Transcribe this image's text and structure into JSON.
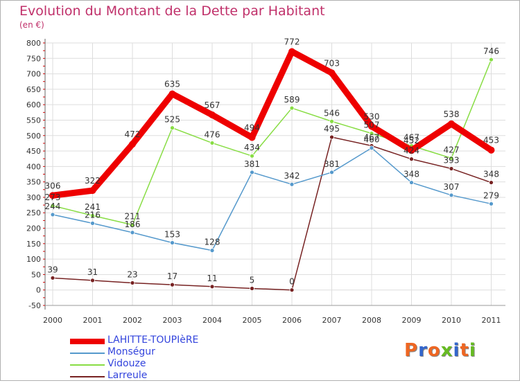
{
  "chart_data": {
    "type": "line",
    "title": "Evolution du Montant de la Dette par Habitant",
    "subtitle": "(en €)",
    "xlabel": "",
    "ylabel": "",
    "categories": [
      "2000",
      "2001",
      "2002",
      "2003",
      "2004",
      "2005",
      "2006",
      "2007",
      "2008",
      "2009",
      "2010",
      "2011"
    ],
    "ylim": [
      -50,
      800
    ],
    "yticks": [
      -50,
      0,
      50,
      100,
      150,
      200,
      250,
      300,
      350,
      400,
      450,
      500,
      550,
      600,
      650,
      700,
      750,
      800
    ],
    "grid": true,
    "legend_position": "bottom-left",
    "series": [
      {
        "name": "LAHITTE-TOUPIèRE",
        "color": "#ee0000",
        "values": [
          306,
          322,
          472,
          635,
          567,
          494,
          772,
          703,
          530,
          452,
          538,
          453
        ]
      },
      {
        "name": "Monségur",
        "color": "#5599cc",
        "values": [
          244,
          216,
          186,
          153,
          128,
          381,
          342,
          381,
          460,
          348,
          307,
          279
        ]
      },
      {
        "name": "Vidouze",
        "color": "#88dd44",
        "values": [
          273,
          241,
          211,
          525,
          476,
          434,
          589,
          546,
          507,
          467,
          427,
          746
        ]
      },
      {
        "name": "Larreule",
        "color": "#772222",
        "values": [
          39,
          31,
          23,
          17,
          11,
          5,
          0,
          495,
          467,
          424,
          393,
          348
        ]
      }
    ]
  },
  "branding": {
    "logo_text": "Proxiti",
    "colors": [
      "#ee6622",
      "#3366cc",
      "#ee6622",
      "#66bb22",
      "#3366cc",
      "#ee6622",
      "#66bb22"
    ]
  }
}
